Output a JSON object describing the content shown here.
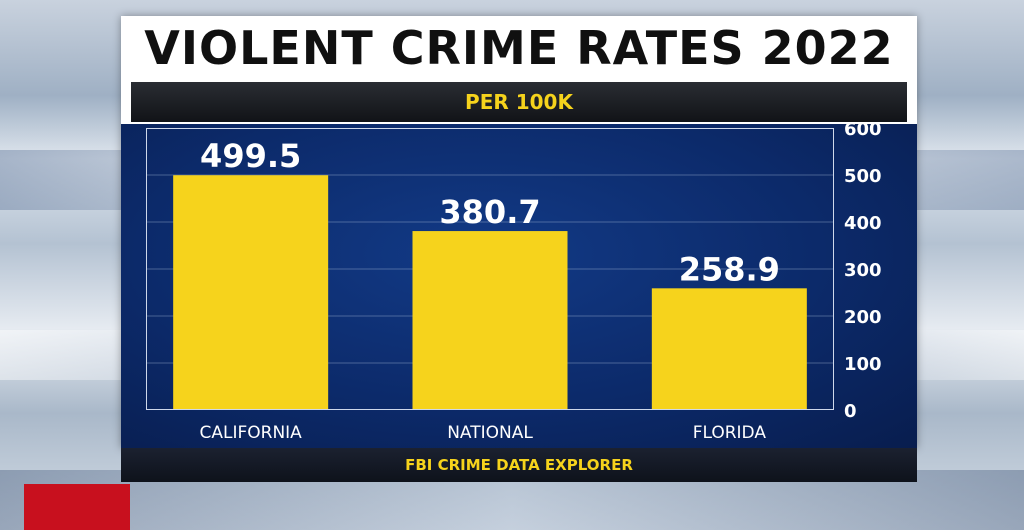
{
  "chart_data": {
    "type": "bar",
    "title": "VIOLENT CRIME RATES 2022",
    "subtitle": "PER 100K",
    "source": "FBI CRIME DATA EXPLORER",
    "categories": [
      "CALIFORNIA",
      "NATIONAL",
      "FLORIDA"
    ],
    "values": [
      499.5,
      380.7,
      258.9
    ],
    "value_labels": [
      "499.5",
      "380.7",
      "258.9"
    ],
    "ylim": [
      0,
      600
    ],
    "yticks": [
      0,
      100,
      200,
      300,
      400,
      500,
      600
    ],
    "grid": true,
    "y_axis_side": "right",
    "bar_color": "#f6d31c",
    "background_color": "#0c2a6a"
  }
}
